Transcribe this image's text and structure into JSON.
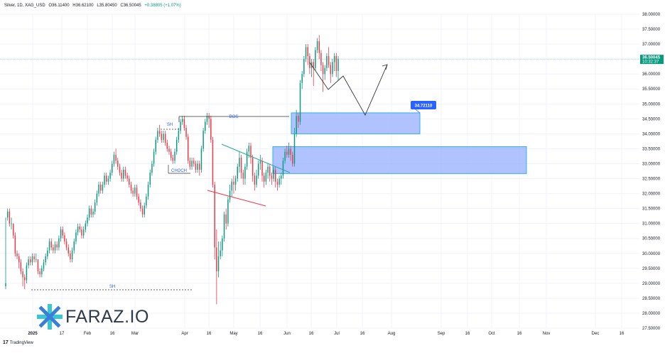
{
  "header": {
    "symbol": "Silver, 1D, XAG_USD",
    "open": "O36.11400",
    "high": "H36.62100",
    "low": "L35.80450",
    "close": "C36.50045",
    "change": "+0.38805 (+1.07%)"
  },
  "footer": {
    "brand": "TradingView"
  },
  "watermark": {
    "text": "FARAZ.IO"
  },
  "colors": {
    "up": "#089981",
    "down": "#f23645",
    "zone_fill": "#8fa9ff",
    "zone_border": "#2ab0f0",
    "tag": "#2962ff",
    "axis_text": "#131722",
    "grid": "#f0f3fa"
  },
  "chart_data": {
    "type": "candlestick",
    "ylim": [
      27.5,
      38.0
    ],
    "y_ticks": [
      "38.00000",
      "37.50000",
      "37.00000",
      "36.50000",
      "36.00000",
      "35.50000",
      "35.00000",
      "34.50000",
      "34.00000",
      "33.50000",
      "33.00000",
      "32.50000",
      "32.00000",
      "31.50000",
      "31.00000",
      "30.50000",
      "30.00000",
      "29.50000",
      "29.00000",
      "28.50000",
      "28.00000",
      "27.50000"
    ],
    "x_ticks": [
      "2025",
      "17",
      "Feb",
      "16",
      "Mar",
      "Apr",
      "16",
      "May",
      "16",
      "Jun",
      "16",
      "Jul",
      "16",
      "Aug",
      "Sep",
      "16",
      "Oct",
      "16",
      "Nov",
      "Dec",
      "16"
    ],
    "last_price": {
      "value": "36.50045",
      "countdown": "10:32:37"
    },
    "annotations": {
      "bos": "BOS",
      "choch": "CHOCH",
      "sh_upper": "SH",
      "sh_lower": "SH",
      "tag_value": "34.72110"
    },
    "zones": [
      {
        "name": "upper-demand-zone",
        "top": 34.7,
        "bottom": 34.0
      },
      {
        "name": "lower-demand-zone",
        "top": 33.57,
        "bottom": 32.67
      }
    ],
    "candles": [
      [
        28.9,
        29.0,
        31.2,
        28.8
      ],
      [
        31.2,
        31.4,
        31.5,
        31.1
      ],
      [
        31.4,
        31.0,
        31.5,
        30.9
      ],
      [
        31.0,
        31.0,
        31.2,
        30.8
      ],
      [
        31.0,
        30.6,
        31.0,
        30.5
      ],
      [
        30.6,
        30.0,
        30.7,
        29.9
      ],
      [
        30.0,
        29.9,
        30.1,
        29.8
      ],
      [
        29.9,
        29.7,
        30.0,
        29.5
      ],
      [
        29.7,
        29.4,
        29.8,
        29.3
      ],
      [
        29.4,
        29.2,
        29.5,
        28.9
      ],
      [
        29.2,
        29.1,
        29.3,
        28.8
      ],
      [
        29.1,
        29.6,
        29.7,
        29.0
      ],
      [
        29.6,
        29.8,
        29.9,
        29.5
      ],
      [
        29.8,
        29.7,
        29.9,
        29.6
      ],
      [
        29.7,
        29.9,
        30.0,
        29.6
      ],
      [
        29.9,
        29.8,
        30.0,
        29.7
      ],
      [
        29.8,
        29.8,
        30.0,
        29.7
      ],
      [
        29.8,
        29.4,
        29.8,
        29.3
      ],
      [
        29.4,
        29.3,
        29.5,
        29.2
      ],
      [
        29.3,
        29.5,
        29.6,
        29.2
      ],
      [
        29.5,
        29.7,
        29.8,
        29.4
      ],
      [
        29.7,
        29.9,
        30.0,
        29.6
      ],
      [
        29.9,
        30.1,
        30.2,
        29.8
      ],
      [
        30.1,
        30.4,
        30.5,
        30.0
      ],
      [
        30.4,
        30.2,
        30.5,
        30.1
      ],
      [
        30.2,
        30.1,
        30.3,
        30.0
      ],
      [
        30.1,
        30.3,
        30.4,
        30.0
      ],
      [
        30.3,
        30.2,
        30.4,
        30.1
      ],
      [
        30.2,
        30.5,
        30.6,
        30.1
      ],
      [
        30.5,
        30.8,
        30.9,
        30.4
      ],
      [
        30.8,
        30.6,
        30.9,
        30.5
      ],
      [
        30.6,
        30.4,
        30.7,
        30.3
      ],
      [
        30.4,
        30.2,
        30.5,
        30.1
      ],
      [
        30.2,
        30.0,
        30.3,
        29.9
      ],
      [
        30.0,
        29.8,
        30.1,
        29.7
      ],
      [
        29.8,
        30.1,
        30.2,
        29.7
      ],
      [
        30.1,
        30.4,
        30.5,
        30.0
      ],
      [
        30.4,
        30.7,
        30.8,
        30.3
      ],
      [
        30.7,
        30.9,
        31.0,
        30.6
      ],
      [
        30.9,
        30.8,
        31.0,
        30.7
      ],
      [
        30.8,
        30.6,
        30.9,
        30.5
      ],
      [
        30.6,
        30.8,
        30.9,
        30.5
      ],
      [
        30.8,
        31.0,
        31.1,
        30.7
      ],
      [
        31.0,
        31.2,
        31.3,
        30.9
      ],
      [
        31.2,
        31.5,
        31.6,
        31.1
      ],
      [
        31.5,
        31.3,
        31.6,
        31.2
      ],
      [
        31.3,
        31.4,
        31.5,
        31.2
      ],
      [
        31.4,
        31.7,
        31.8,
        31.3
      ],
      [
        31.7,
        32.0,
        32.1,
        31.6
      ],
      [
        32.0,
        32.3,
        32.4,
        31.9
      ],
      [
        32.3,
        32.1,
        32.4,
        32.0
      ],
      [
        32.1,
        32.3,
        32.4,
        32.0
      ],
      [
        32.3,
        32.6,
        32.7,
        32.2
      ],
      [
        32.6,
        32.4,
        32.7,
        32.3
      ],
      [
        32.4,
        32.5,
        32.6,
        32.3
      ],
      [
        32.5,
        32.7,
        32.8,
        32.4
      ],
      [
        32.7,
        33.0,
        33.1,
        32.6
      ],
      [
        33.0,
        33.3,
        33.4,
        32.9
      ],
      [
        33.3,
        33.1,
        33.5,
        33.0
      ],
      [
        33.1,
        32.9,
        33.2,
        32.8
      ],
      [
        32.9,
        32.7,
        33.0,
        32.6
      ],
      [
        32.7,
        32.5,
        32.8,
        32.4
      ],
      [
        32.5,
        32.8,
        32.9,
        32.4
      ],
      [
        32.8,
        32.6,
        32.9,
        32.5
      ],
      [
        32.6,
        32.5,
        32.7,
        32.4
      ],
      [
        32.5,
        32.3,
        32.6,
        32.2
      ],
      [
        32.3,
        32.1,
        32.4,
        32.0
      ],
      [
        32.1,
        32.0,
        32.2,
        31.9
      ],
      [
        32.0,
        32.2,
        32.3,
        31.9
      ],
      [
        32.2,
        31.9,
        32.3,
        31.8
      ],
      [
        31.9,
        31.7,
        32.0,
        31.6
      ],
      [
        31.7,
        31.5,
        31.8,
        31.4
      ],
      [
        31.5,
        31.3,
        31.6,
        31.2
      ],
      [
        31.3,
        31.6,
        31.7,
        31.2
      ],
      [
        31.6,
        31.9,
        32.0,
        31.5
      ],
      [
        31.9,
        32.3,
        32.4,
        31.8
      ],
      [
        32.3,
        32.7,
        32.8,
        32.2
      ],
      [
        32.7,
        33.0,
        33.1,
        32.6
      ],
      [
        33.0,
        33.4,
        33.5,
        32.9
      ],
      [
        33.4,
        33.8,
        33.9,
        33.3
      ],
      [
        33.8,
        34.1,
        34.2,
        33.7
      ],
      [
        34.1,
        34.0,
        34.3,
        33.9
      ],
      [
        34.0,
        33.8,
        34.1,
        33.7
      ],
      [
        33.8,
        34.0,
        34.1,
        33.7
      ],
      [
        34.0,
        33.7,
        34.1,
        33.6
      ],
      [
        33.7,
        33.5,
        33.8,
        33.4
      ],
      [
        33.5,
        33.4,
        33.6,
        33.3
      ],
      [
        33.4,
        33.2,
        33.5,
        33.1
      ],
      [
        33.2,
        33.1,
        33.3,
        33.0
      ],
      [
        33.1,
        33.4,
        33.5,
        33.0
      ],
      [
        33.4,
        33.8,
        33.9,
        33.3
      ],
      [
        33.8,
        34.1,
        34.2,
        33.7
      ],
      [
        34.1,
        34.4,
        34.5,
        34.0
      ],
      [
        34.4,
        34.5,
        34.6,
        34.3
      ],
      [
        34.5,
        34.2,
        34.6,
        34.1
      ],
      [
        34.2,
        33.9,
        34.3,
        33.8
      ],
      [
        33.9,
        33.1,
        34.0,
        33.0
      ],
      [
        33.1,
        32.9,
        33.2,
        32.8
      ],
      [
        32.9,
        33.1,
        33.2,
        32.8
      ],
      [
        33.1,
        33.0,
        33.2,
        32.9
      ],
      [
        33.0,
        32.8,
        33.1,
        32.7
      ],
      [
        32.8,
        33.0,
        33.1,
        32.7
      ],
      [
        33.0,
        32.8,
        33.1,
        32.6
      ],
      [
        32.8,
        33.5,
        33.6,
        32.7
      ],
      [
        33.5,
        34.1,
        34.2,
        33.4
      ],
      [
        34.1,
        34.4,
        34.5,
        34.0
      ],
      [
        34.4,
        34.6,
        34.7,
        34.3
      ],
      [
        34.6,
        34.5,
        34.7,
        34.2
      ],
      [
        34.5,
        33.8,
        34.6,
        33.7
      ],
      [
        33.8,
        32.3,
        33.9,
        32.2
      ],
      [
        32.3,
        30.2,
        32.4,
        29.8
      ],
      [
        30.2,
        29.4,
        30.8,
        28.3
      ],
      [
        29.4,
        29.9,
        30.4,
        29.2
      ],
      [
        29.9,
        30.1,
        30.4,
        29.8
      ],
      [
        30.1,
        30.5,
        30.6,
        29.9
      ],
      [
        30.5,
        31.3,
        31.4,
        30.4
      ],
      [
        31.3,
        31.0,
        31.5,
        30.8
      ],
      [
        31.0,
        31.8,
        31.9,
        30.9
      ],
      [
        31.8,
        32.1,
        32.3,
        31.7
      ],
      [
        32.1,
        32.4,
        32.5,
        31.9
      ],
      [
        32.4,
        32.3,
        32.6,
        32.0
      ],
      [
        32.3,
        32.5,
        32.6,
        32.1
      ],
      [
        32.5,
        32.9,
        33.0,
        32.4
      ],
      [
        32.9,
        33.2,
        33.4,
        32.7
      ],
      [
        33.2,
        32.7,
        33.3,
        32.5
      ],
      [
        32.7,
        32.5,
        32.8,
        32.3
      ],
      [
        32.5,
        32.9,
        33.0,
        32.3
      ],
      [
        32.9,
        33.4,
        33.5,
        32.8
      ],
      [
        33.4,
        33.6,
        33.7,
        33.2
      ],
      [
        33.6,
        33.2,
        33.7,
        33.0
      ],
      [
        33.2,
        32.6,
        33.3,
        32.4
      ],
      [
        32.6,
        32.3,
        32.7,
        32.1
      ],
      [
        32.3,
        32.6,
        32.8,
        32.2
      ],
      [
        32.6,
        33.0,
        33.1,
        32.5
      ],
      [
        33.0,
        33.1,
        33.3,
        32.8
      ],
      [
        33.1,
        32.6,
        33.2,
        32.4
      ],
      [
        32.6,
        32.4,
        32.7,
        32.2
      ],
      [
        32.4,
        32.7,
        32.8,
        32.3
      ],
      [
        32.7,
        32.9,
        33.0,
        32.5
      ],
      [
        32.9,
        32.6,
        33.0,
        32.4
      ],
      [
        32.6,
        32.5,
        32.7,
        32.3
      ],
      [
        32.5,
        32.8,
        32.9,
        32.4
      ],
      [
        32.8,
        32.4,
        32.9,
        32.2
      ],
      [
        32.4,
        32.3,
        32.5,
        32.1
      ],
      [
        32.3,
        32.5,
        32.6,
        32.2
      ],
      [
        32.5,
        32.6,
        32.7,
        32.3
      ],
      [
        32.6,
        33.1,
        33.2,
        32.5
      ],
      [
        33.1,
        33.4,
        33.5,
        33.0
      ],
      [
        33.4,
        33.3,
        33.6,
        33.2
      ],
      [
        33.3,
        33.5,
        33.7,
        33.2
      ],
      [
        33.5,
        33.3,
        33.6,
        33.1
      ],
      [
        33.3,
        33.0,
        33.4,
        32.9
      ],
      [
        33.0,
        34.0,
        34.2,
        32.9
      ],
      [
        34.0,
        34.6,
        34.8,
        33.9
      ],
      [
        34.6,
        34.4,
        34.7,
        34.2
      ],
      [
        34.4,
        35.7,
        35.8,
        34.3
      ],
      [
        35.7,
        36.0,
        36.1,
        35.5
      ],
      [
        36.0,
        36.5,
        36.6,
        35.9
      ],
      [
        36.5,
        36.9,
        37.0,
        36.4
      ],
      [
        36.9,
        36.6,
        37.0,
        36.3
      ],
      [
        36.6,
        36.2,
        36.7,
        36.0
      ],
      [
        36.2,
        36.4,
        36.5,
        35.9
      ],
      [
        36.4,
        36.2,
        36.5,
        35.6
      ],
      [
        36.2,
        36.8,
        36.9,
        36.1
      ],
      [
        36.8,
        37.1,
        37.2,
        36.7
      ],
      [
        37.1,
        36.7,
        37.3,
        36.5
      ],
      [
        36.7,
        36.3,
        36.8,
        36.1
      ],
      [
        36.3,
        36.0,
        36.4,
        35.4
      ],
      [
        36.0,
        36.2,
        36.3,
        35.8
      ],
      [
        36.2,
        36.6,
        36.7,
        36.1
      ],
      [
        36.6,
        36.3,
        36.9,
        36.2
      ],
      [
        36.3,
        36.0,
        36.4,
        35.7
      ],
      [
        36.0,
        36.4,
        36.5,
        35.9
      ],
      [
        36.4,
        36.6,
        36.7,
        36.1
      ],
      [
        36.6,
        36.1,
        36.7,
        35.9
      ],
      [
        36.1,
        36.5,
        36.6,
        35.8
      ]
    ]
  }
}
